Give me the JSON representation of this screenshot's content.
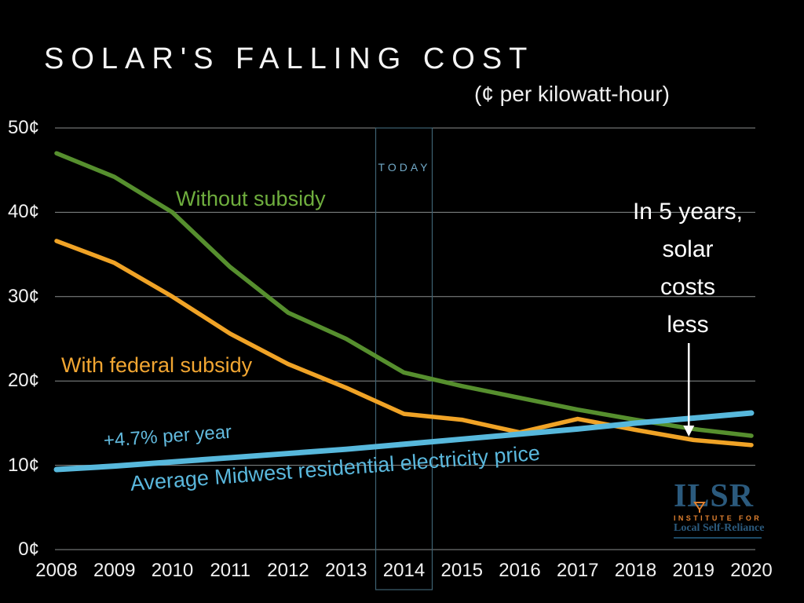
{
  "title": "SOLAR'S FALLING COST",
  "subtitle": "(¢ per kilowatt-hour)",
  "today_marker": {
    "label": "TODAY",
    "year": 2014
  },
  "annotation": {
    "lines": [
      "In 5 years,",
      "solar",
      "costs",
      "less"
    ],
    "arrow_points_to_year": 2019
  },
  "logo": {
    "acronym": "ILSR",
    "institute": "INSTITUTE FOR",
    "org": "Local Self-Reliance"
  },
  "colors": {
    "background": "#000000",
    "title_text": "#f5f5f5",
    "gridline": "#b8bebe",
    "axis_text": "#f2f2f2",
    "today_box": "#3e6272",
    "today_text": "#71a9c7",
    "annotation_text": "#ffffff",
    "arrow": "#ffffff",
    "green_line": "#568f2e",
    "orange_line": "#f0a326",
    "blue_line": "#57b8dc",
    "logo_blue": "#2b5a7d",
    "logo_orange": "#e0802f"
  },
  "chart_data": {
    "type": "line",
    "title": "SOLAR'S FALLING COST",
    "subtitle": "(¢ per kilowatt-hour)",
    "x": [
      2008,
      2009,
      2010,
      2011,
      2012,
      2013,
      2014,
      2015,
      2016,
      2017,
      2018,
      2019,
      2020
    ],
    "y_ticks": [
      0,
      10,
      20,
      30,
      40,
      50
    ],
    "y_tick_suffix": "¢",
    "ylim": [
      0,
      50
    ],
    "grid": "horizontal",
    "legend": "inline-labels",
    "series": [
      {
        "key": "without_subsidy",
        "name": "Without subsidy",
        "color": "#568f2e",
        "values": [
          47.0,
          44.2,
          40.0,
          33.5,
          28.1,
          25.0,
          21.0,
          19.4,
          18.0,
          16.6,
          15.4,
          14.3,
          13.5
        ]
      },
      {
        "key": "with_subsidy",
        "name": "With federal subsidy",
        "color": "#f0a326",
        "values": [
          36.6,
          34.0,
          30.0,
          25.6,
          22.0,
          19.2,
          16.1,
          15.4,
          13.9,
          15.5,
          14.2,
          13.0,
          12.4
        ]
      },
      {
        "key": "electricity",
        "name": "Average Midwest residential electricity price",
        "sublabel": "+4.7% per year",
        "color": "#57b8dc",
        "values": [
          9.5,
          9.9,
          10.4,
          10.9,
          11.4,
          11.9,
          12.5,
          13.1,
          13.7,
          14.3,
          15.0,
          15.6,
          16.2
        ]
      }
    ]
  }
}
